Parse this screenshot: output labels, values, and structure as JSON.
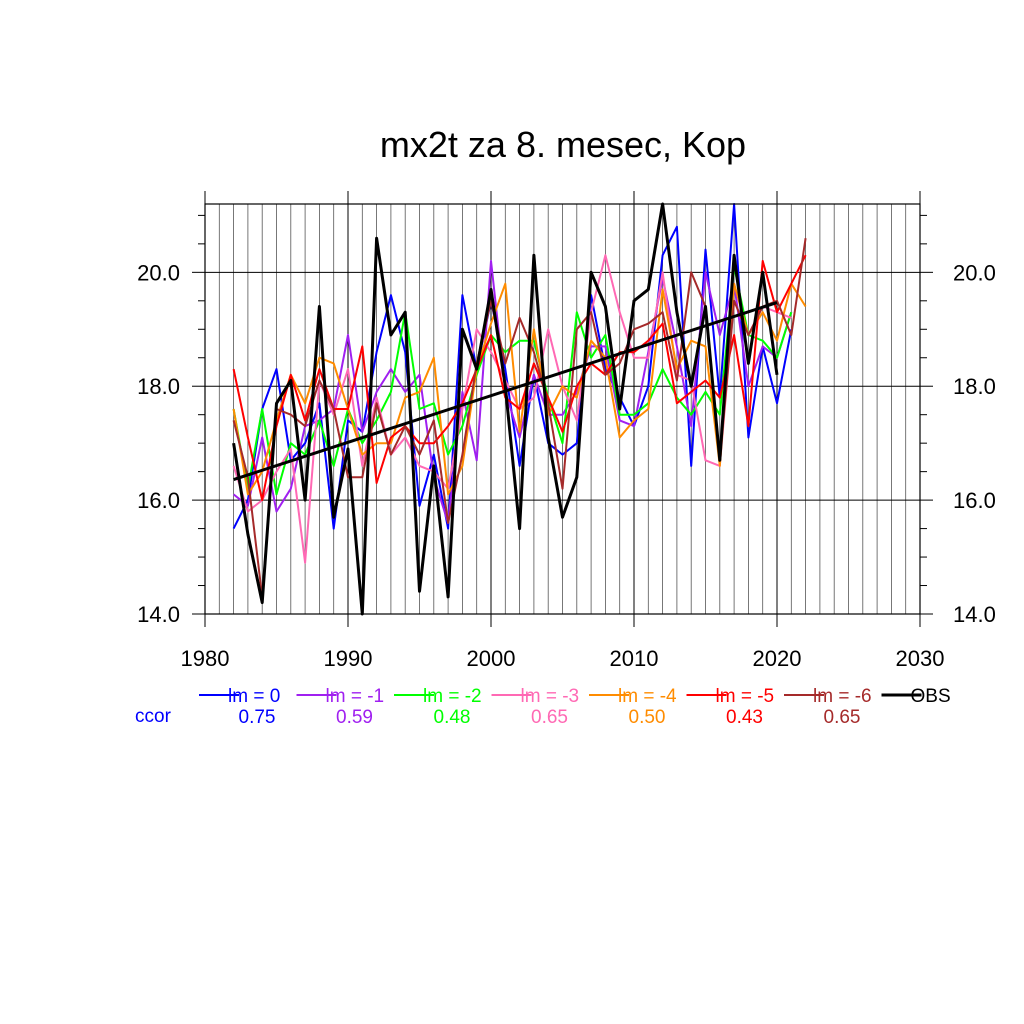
{
  "chart_data": {
    "type": "line",
    "title": "mx2t za 8. mesec, Kop",
    "xlim": [
      1980,
      2030
    ],
    "ylim": [
      14,
      21.2
    ],
    "x_ticks": [
      1980,
      1990,
      2000,
      2010,
      2020,
      2030
    ],
    "x_tick_labels": [
      "1980",
      "1990",
      "2000",
      "2010",
      "2020",
      "2030"
    ],
    "y_ticks": [
      14,
      16,
      18,
      20
    ],
    "y_tick_labels": [
      "14.0",
      "16.0",
      "18.0",
      "20.0"
    ],
    "grid": true,
    "x": [
      1982,
      1983,
      1984,
      1985,
      1986,
      1987,
      1988,
      1989,
      1990,
      1991,
      1992,
      1993,
      1994,
      1995,
      1996,
      1997,
      1998,
      1999,
      2000,
      2001,
      2002,
      2003,
      2004,
      2005,
      2006,
      2007,
      2008,
      2009,
      2010,
      2011,
      2012,
      2013,
      2014,
      2015,
      2016,
      2017,
      2018,
      2019,
      2020,
      2021,
      2022
    ],
    "series": [
      {
        "name": "lm = 0",
        "color": "#0000ff",
        "ccor": "0.75",
        "values": [
          15.5,
          16.0,
          17.6,
          18.3,
          16.7,
          17.0,
          17.7,
          15.5,
          17.4,
          17.2,
          18.6,
          19.6,
          18.6,
          15.9,
          16.8,
          15.5,
          19.6,
          18.3,
          19.5,
          18.3,
          16.6,
          18.2,
          17.0,
          16.8,
          17.0,
          19.6,
          18.3,
          17.8,
          17.3,
          18.0,
          20.3,
          20.8,
          16.6,
          20.4,
          17.8,
          21.2,
          17.1,
          18.7,
          17.7,
          19.0,
          null
        ]
      },
      {
        "name": "lm = -1",
        "color": "#a020f0",
        "ccor": "0.59",
        "values": [
          16.1,
          15.9,
          17.1,
          15.8,
          16.2,
          17.3,
          17.4,
          17.6,
          18.9,
          17.2,
          17.9,
          18.3,
          17.9,
          18.2,
          16.4,
          15.6,
          17.9,
          16.7,
          20.2,
          17.9,
          17.1,
          18.2,
          17.5,
          17.5,
          17.9,
          18.7,
          18.7,
          17.4,
          17.3,
          18.6,
          19.9,
          18.7,
          17.3,
          20.0,
          18.9,
          19.8,
          18.0,
          18.7,
          18.5,
          19.3,
          null
        ]
      },
      {
        "name": "lm = -2",
        "color": "#00ff00",
        "ccor": "0.48",
        "values": [
          17.6,
          16.2,
          17.6,
          16.1,
          17.0,
          16.8,
          17.4,
          16.6,
          17.6,
          17.0,
          17.4,
          17.9,
          19.3,
          17.6,
          17.7,
          16.8,
          17.3,
          18.2,
          18.9,
          18.6,
          18.8,
          18.8,
          17.8,
          17.0,
          19.3,
          18.5,
          18.9,
          17.5,
          17.5,
          17.7,
          18.3,
          17.8,
          17.5,
          17.9,
          17.5,
          20.1,
          18.9,
          18.8,
          18.5,
          19.3,
          null
        ]
      },
      {
        "name": "lm = -3",
        "color": "#ff69b4",
        "ccor": "0.65",
        "values": [
          16.6,
          15.8,
          16.0,
          16.5,
          16.9,
          14.9,
          18.1,
          17.5,
          18.3,
          16.6,
          17.8,
          16.8,
          17.1,
          16.6,
          16.5,
          16.2,
          17.6,
          19.0,
          18.6,
          18.1,
          17.6,
          17.8,
          19.0,
          18.0,
          17.4,
          19.3,
          20.3,
          19.3,
          18.5,
          18.5,
          20.0,
          18.2,
          18.1,
          16.7,
          16.6,
          19.5,
          18.9,
          19.4,
          19.3,
          19.2,
          null
        ]
      },
      {
        "name": "lm = -4",
        "color": "#ff8c00",
        "ccor": "0.50",
        "values": [
          17.6,
          16.1,
          16.5,
          17.4,
          18.2,
          17.7,
          18.5,
          18.4,
          17.6,
          16.8,
          17.0,
          17.0,
          17.8,
          17.9,
          18.5,
          16.1,
          16.6,
          18.3,
          19.1,
          19.8,
          17.2,
          19.0,
          17.5,
          18.0,
          17.8,
          18.8,
          18.5,
          17.1,
          17.4,
          17.6,
          19.7,
          18.3,
          18.8,
          18.7,
          16.6,
          19.8,
          18.9,
          19.3,
          18.8,
          19.8,
          19.4
        ]
      },
      {
        "name": "lm = -5",
        "color": "#ff0000",
        "ccor": "0.43",
        "values": [
          18.3,
          17.1,
          16.0,
          17.3,
          18.2,
          17.4,
          18.3,
          17.6,
          17.6,
          18.7,
          16.3,
          17.1,
          17.3,
          17.0,
          17.0,
          17.3,
          17.7,
          18.3,
          18.9,
          17.8,
          17.6,
          18.4,
          17.8,
          17.2,
          18.0,
          18.4,
          18.2,
          18.6,
          18.6,
          18.8,
          19.1,
          17.7,
          17.9,
          18.1,
          17.8,
          18.9,
          17.3,
          20.2,
          19.3,
          19.8,
          20.3
        ]
      },
      {
        "name": "lm = -6",
        "color": "#a52a2a",
        "ccor": "0.65",
        "values": [
          17.4,
          16.4,
          14.3,
          17.6,
          17.5,
          17.3,
          18.1,
          17.6,
          16.4,
          16.4,
          17.7,
          16.8,
          17.3,
          16.8,
          17.4,
          15.6,
          16.8,
          18.4,
          19.5,
          18.4,
          19.2,
          18.6,
          17.7,
          16.2,
          19.0,
          19.3,
          18.2,
          18.4,
          19.0,
          19.1,
          19.3,
          18.1,
          20.0,
          19.4,
          16.7,
          19.5,
          18.9,
          19.4,
          19.5,
          18.9,
          20.6
        ]
      },
      {
        "name": "OBS",
        "color": "#000000",
        "ccor": "",
        "values": [
          17.0,
          15.4,
          14.2,
          17.7,
          18.1,
          16.0,
          19.4,
          15.7,
          16.9,
          14.0,
          20.6,
          18.9,
          19.3,
          14.4,
          16.6,
          14.3,
          19.0,
          18.3,
          19.7,
          18.0,
          15.5,
          20.3,
          17.1,
          15.7,
          16.4,
          20.0,
          19.4,
          17.6,
          19.5,
          19.7,
          21.2,
          19.3,
          18.0,
          19.4,
          16.7,
          20.3,
          18.4,
          20.0,
          18.2,
          null,
          null
        ]
      }
    ],
    "trend": {
      "x": [
        1982,
        2020
      ],
      "y": [
        16.36,
        19.47
      ]
    },
    "legend_ccor_label": "ccor",
    "legend_ccor_color": "#0000ff",
    "legend_placement": "below"
  }
}
